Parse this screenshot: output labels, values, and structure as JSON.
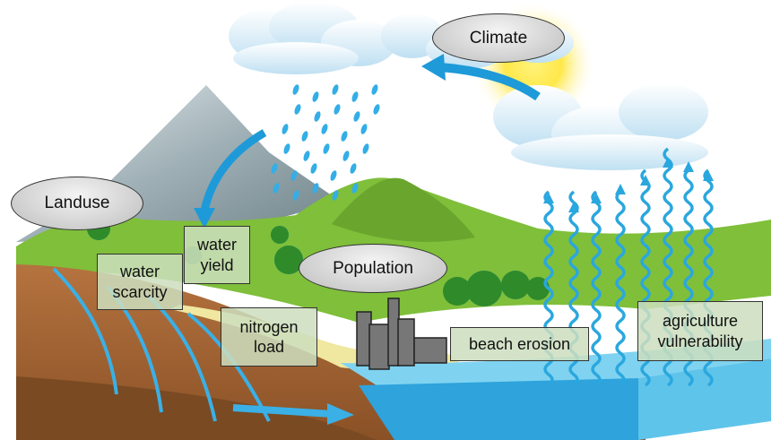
{
  "ellipses": [
    {
      "label": "Climate"
    },
    {
      "label": "Landuse"
    },
    {
      "label": "Population"
    }
  ],
  "boxes": [
    {
      "label": "water yield"
    },
    {
      "label": "water scarcity"
    },
    {
      "label": "nitrogen load"
    },
    {
      "label": "beach erosion"
    },
    {
      "label": "agriculture vulnerability"
    }
  ]
}
